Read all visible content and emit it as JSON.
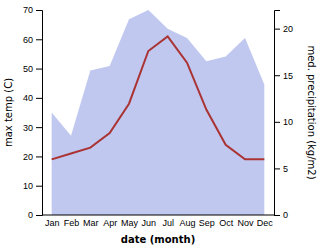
{
  "chart_data": {
    "type": "line",
    "categories": [
      "Jan",
      "Feb",
      "Mar",
      "Apr",
      "May",
      "Jun",
      "Jul",
      "Aug",
      "Sep",
      "Oct",
      "Nov",
      "Dec"
    ],
    "xlabel": "date (month)",
    "ylabel": "max temp (C)",
    "y2label": "med. precipitation (kg/m2)",
    "ylim": [
      0,
      70
    ],
    "yticks": [
      0,
      10,
      20,
      30,
      40,
      50,
      60,
      70
    ],
    "y2lim": [
      0,
      22
    ],
    "y2ticks": [
      0,
      5,
      10,
      15,
      20
    ],
    "series": [
      {
        "type": "area",
        "axis": "y2",
        "color": "#c0c8f0",
        "values": [
          11,
          8.5,
          15.5,
          16,
          21,
          22,
          20,
          19,
          16.5,
          17,
          19,
          14
        ]
      },
      {
        "type": "line",
        "color": "#aa3333",
        "values": [
          19,
          21,
          23,
          28,
          38,
          56,
          61,
          52,
          36,
          24,
          19,
          19
        ]
      }
    ]
  }
}
